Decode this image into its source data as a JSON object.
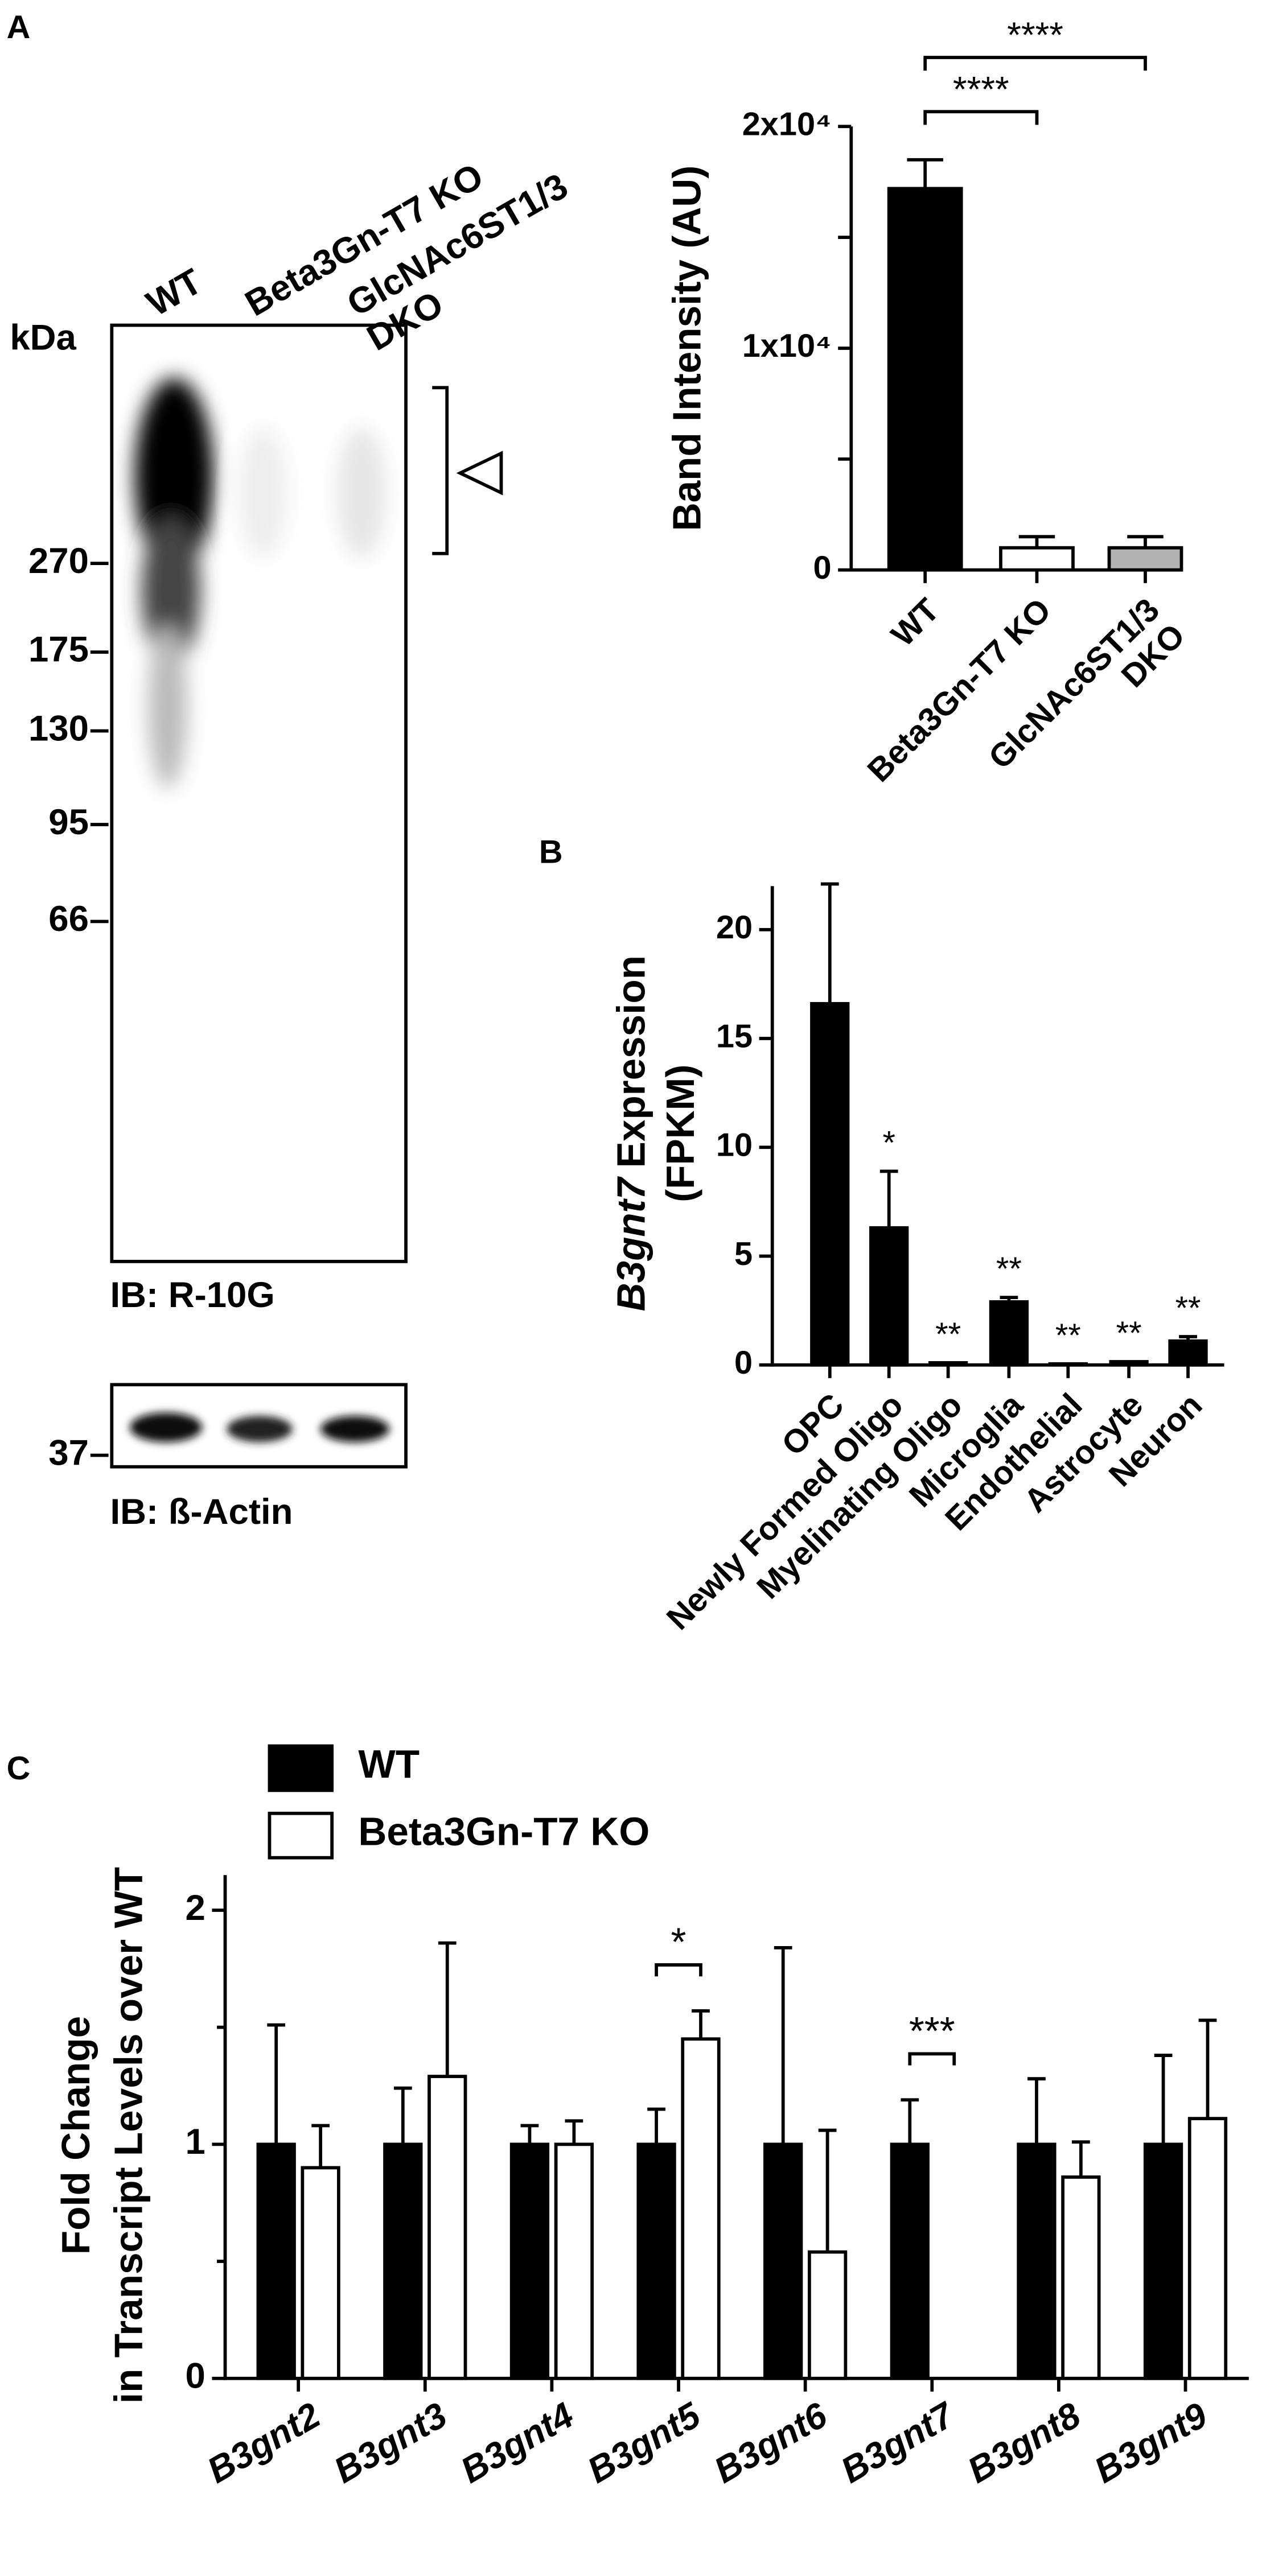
{
  "panel_labels": [
    "A",
    "B",
    "C"
  ],
  "blot": {
    "lanes": [
      "WT",
      "Beta3Gn-T7 KO",
      "GlcNAc6ST1/3\nDKO"
    ],
    "unit": "kDa",
    "markers": [
      "270",
      "175",
      "130",
      "95",
      "66"
    ],
    "ib_main": "IB: R-10G",
    "actin_marker": "37",
    "ib_actin": "IB: ß-Actin"
  },
  "chart_data": [
    {
      "type": "bar",
      "ylabel": "Band Intensity (AU)",
      "categories": [
        "WT",
        "Beta3Gn-T7 KO",
        "GlcNAc6ST1/3\nDKO"
      ],
      "values": [
        17200,
        1000,
        1000
      ],
      "errors": [
        1300,
        500,
        500
      ],
      "colors": [
        "#000000",
        "#ffffff",
        "#b3b3b3"
      ],
      "ylim": [
        0,
        20000
      ],
      "yticks": [
        0,
        {
          "value": 10000,
          "label": "1x10⁴"
        },
        {
          "value": 20000,
          "label": "2x10⁴"
        }
      ],
      "yticks_minor": [
        5000,
        15000
      ],
      "annotations": [
        "****",
        "****"
      ]
    },
    {
      "type": "bar",
      "ylabel_italic": "B3gnt7",
      "ylabel": "Expression",
      "ylabel_line2": "(FPKM)",
      "categories": [
        "OPC",
        "Newly Formed Oligo",
        "Myelinating Oligo",
        "Microglia",
        "Endothelial",
        "Astrocyte",
        "Neuron"
      ],
      "values": [
        16.6,
        6.3,
        0.1,
        2.9,
        0.05,
        0.15,
        1.1
      ],
      "errors": [
        5.5,
        2.6,
        0,
        0.2,
        0,
        0,
        0.2
      ],
      "colors": [
        "#000000"
      ],
      "ylim": [
        0,
        22
      ],
      "yticks": [
        0,
        5,
        10,
        15,
        20
      ],
      "annotations": [
        null,
        "*",
        "**",
        "**",
        "**",
        "**",
        "**"
      ]
    },
    {
      "type": "grouped_bar",
      "ylabel": "Fold Change",
      "ylabel_line2": "in Transcript Levels over WT",
      "categories": [
        "B3gnt2",
        "B3gnt3",
        "B3gnt4",
        "B3gnt5",
        "B3gnt6",
        "B3gnt7",
        "B3gnt8",
        "B3gnt9"
      ],
      "series": [
        {
          "name": "WT",
          "color": "#000000",
          "values": [
            1,
            1,
            1,
            1,
            1,
            1,
            1,
            1
          ],
          "errors": [
            0.51,
            0.24,
            0.08,
            0.15,
            0.84,
            0.19,
            0.28,
            0.38
          ]
        },
        {
          "name": "Beta3Gn-T7 KO",
          "color": "#ffffff",
          "values": [
            0.9,
            1.29,
            1.0,
            1.45,
            0.54,
            0,
            0.86,
            1.11
          ],
          "errors": [
            0.18,
            0.57,
            0.1,
            0.12,
            0.52,
            0,
            0.15,
            0.42
          ]
        }
      ],
      "ylim": [
        0,
        2.15
      ],
      "yticks": [
        0,
        1,
        2
      ],
      "annotations": [
        null,
        null,
        null,
        "*",
        null,
        "***",
        null,
        null
      ]
    }
  ]
}
